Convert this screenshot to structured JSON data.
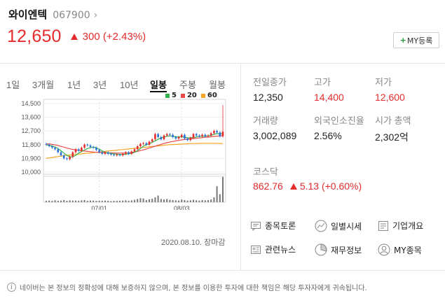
{
  "stock": {
    "name": "와이엔텍",
    "code": "067900",
    "price": "12,650",
    "change": "300 (+2.43%)"
  },
  "my_button": {
    "plus": "+",
    "label": "MY등록"
  },
  "tabs": [
    {
      "label": "1일"
    },
    {
      "label": "3개월"
    },
    {
      "label": "1년"
    },
    {
      "label": "3년"
    },
    {
      "label": "10년"
    },
    {
      "label": "일봉",
      "active": true
    },
    {
      "label": "주봉"
    },
    {
      "label": "월봉"
    }
  ],
  "legend": [
    {
      "label": "5",
      "color": "#2fb24a"
    },
    {
      "label": "20",
      "color": "#e84a4a"
    },
    {
      "label": "60",
      "color": "#f5a623"
    }
  ],
  "chart_data": {
    "type": "candlestick",
    "y_ticks": [
      "14,500",
      "13,600",
      "12,700",
      "11,800",
      "10,900",
      "10,000"
    ],
    "y_tick_values": [
      14500,
      13600,
      12700,
      11800,
      10900,
      10000
    ],
    "ylim": [
      10000,
      14500
    ],
    "x_labels": [
      "07/01",
      "08/03"
    ],
    "series": [
      {
        "name": "5",
        "color": "#2fb24a"
      },
      {
        "name": "20",
        "color": "#e84a4a"
      },
      {
        "name": "60",
        "color": "#f5a623"
      }
    ],
    "close": [
      11800,
      11700,
      11600,
      11500,
      11300,
      11100,
      10900,
      10850,
      11000,
      11300,
      11500,
      11400,
      11600,
      11800,
      11750,
      11650,
      11600,
      11450,
      11300,
      11200,
      11300,
      11200,
      11150,
      11100,
      11150,
      11100,
      11200,
      11300,
      11200,
      11350,
      11500,
      11700,
      11850,
      11900,
      11800,
      12000,
      12150,
      12500,
      12300,
      12150,
      12400,
      12500,
      12450,
      12300,
      12200,
      12300,
      12450,
      12200,
      12100,
      12250,
      12500,
      12400,
      12350,
      12450,
      12350,
      12400,
      12550,
      12700,
      12600,
      12350,
      12650
    ],
    "volume": [
      0.05,
      0.06,
      0.05,
      0.07,
      0.05,
      0.06,
      0.08,
      0.05,
      0.07,
      0.06,
      0.06,
      0.05,
      0.07,
      0.08,
      0.05,
      0.06,
      0.06,
      0.05,
      0.05,
      0.05,
      0.06,
      0.05,
      0.04,
      0.05,
      0.05,
      0.05,
      0.06,
      0.07,
      0.05,
      0.07,
      0.09,
      0.12,
      0.15,
      0.14,
      0.08,
      0.11,
      0.13,
      0.18,
      0.25,
      0.12,
      0.1,
      0.12,
      0.09,
      0.08,
      0.07,
      0.06,
      0.1,
      0.08,
      0.06,
      0.07,
      0.09,
      0.07,
      0.06,
      0.08,
      0.07,
      0.08,
      0.1,
      0.18,
      0.6,
      0.3,
      0.95
    ],
    "ma5": [
      11800,
      11750,
      11700,
      11650,
      11550,
      11400,
      11250,
      11100,
      11000,
      11000,
      11100,
      11250,
      11350,
      11450,
      11550,
      11600,
      11650,
      11600,
      11500,
      11400,
      11300,
      11250,
      11220,
      11200,
      11180,
      11150,
      11160,
      11180,
      11200,
      11230,
      11300,
      11400,
      11550,
      11700,
      11800,
      11870,
      11950,
      12050,
      12150,
      12250,
      12300,
      12350,
      12380,
      12350,
      12320,
      12300,
      12320,
      12300,
      12250,
      12250,
      12270,
      12300,
      12350,
      12350,
      12350,
      12380,
      12420,
      12480,
      12520,
      12500,
      12550
    ],
    "ma20": [
      11850,
      11840,
      11820,
      11780,
      11740,
      11690,
      11640,
      11580,
      11530,
      11490,
      11460,
      11430,
      11400,
      11380,
      11360,
      11340,
      11320,
      11300,
      11290,
      11280,
      11270,
      11265,
      11260,
      11255,
      11250,
      11250,
      11250,
      11260,
      11270,
      11290,
      11320,
      11360,
      11410,
      11460,
      11520,
      11580,
      11640,
      11700,
      11760,
      11820,
      11880,
      11930,
      11970,
      12010,
      12050,
      12080,
      12110,
      12140,
      12160,
      12180,
      12200,
      12220,
      12240,
      12260,
      12280,
      12300,
      12320,
      12340,
      12360,
      12370,
      12390
    ],
    "ma60": [
      10900,
      10930,
      10960,
      10990,
      11020,
      11050,
      11080,
      11100,
      11120,
      11140,
      11160,
      11180,
      11200,
      11220,
      11240,
      11260,
      11280,
      11300,
      11320,
      11340,
      11360,
      11380,
      11400,
      11420,
      11440,
      11460,
      11480,
      11500,
      11520,
      11540,
      11560,
      11580,
      11600,
      11620,
      11640,
      11660,
      11680,
      11700,
      11720,
      11740,
      11760,
      11780,
      11800,
      11810,
      11820,
      11830,
      11840,
      11850,
      11860,
      11870,
      11875,
      11880,
      11885,
      11890,
      11890,
      11890,
      11890,
      11890,
      11890,
      11880,
      11880
    ]
  },
  "date_label": "2020.08.10. 장마감",
  "stats": [
    {
      "label": "전일종가",
      "value": "12,350",
      "red": false
    },
    {
      "label": "고가",
      "value": "14,400",
      "red": true
    },
    {
      "label": "저가",
      "value": "12,600",
      "red": true
    },
    {
      "label": "거래량",
      "value": "3,002,089",
      "red": false
    },
    {
      "label": "외국인소진율",
      "value": "2.56%",
      "red": false
    },
    {
      "label": "시가 총액",
      "value": "2,302억",
      "red": false
    }
  ],
  "kospi": {
    "label": "코스닥",
    "value": "862.76",
    "change": "5.13 (+0.60%)"
  },
  "links": [
    {
      "label": "종목토론",
      "icon": "discussion-icon"
    },
    {
      "label": "일별시세",
      "icon": "daily-price-icon"
    },
    {
      "label": "기업개요",
      "icon": "company-overview-icon"
    },
    {
      "label": "관련뉴스",
      "icon": "news-icon"
    },
    {
      "label": "재무정보",
      "icon": "finance-icon"
    },
    {
      "label": "MY종목",
      "icon": "my-stock-icon"
    }
  ],
  "notice": "네이버는 본 정보의 정확성에 대해 보증하지 않으며, 본 정보를 이용한 투자에 대한 책임은 해당 투자자에게 귀속됩니다."
}
